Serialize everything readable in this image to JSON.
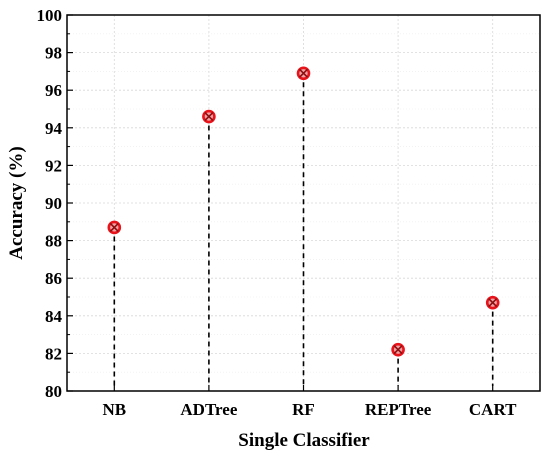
{
  "chart_data": {
    "type": "scatter",
    "title": "",
    "xlabel": "Single Classifier",
    "ylabel": "Accuracy (%)",
    "categories": [
      "NB",
      "ADTree",
      "RF",
      "REPTree",
      "CART"
    ],
    "values": [
      88.7,
      94.6,
      96.9,
      82.2,
      84.7
    ],
    "ylim": [
      80,
      100
    ],
    "yticks": [
      80,
      82,
      84,
      86,
      88,
      90,
      92,
      94,
      96,
      98,
      100
    ],
    "grid": true,
    "marker": "circle-x",
    "marker_color": "#e8141c",
    "stem_style": "dashed"
  }
}
